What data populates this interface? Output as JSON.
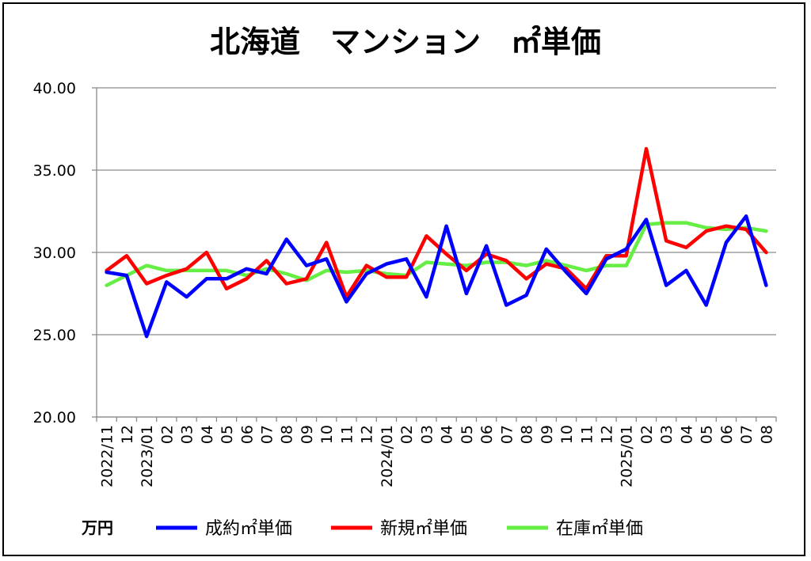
{
  "chart_data": {
    "type": "line",
    "title": "北海道　マンション　㎡単価",
    "unit_label": "万円",
    "ylim": [
      20,
      40
    ],
    "y_ticks": [
      "20.00",
      "25.00",
      "30.00",
      "35.00",
      "40.00"
    ],
    "grid": true,
    "legend_position": "bottom",
    "categories": [
      "2022/11",
      "12",
      "2023/01",
      "02",
      "03",
      "04",
      "05",
      "06",
      "07",
      "08",
      "09",
      "10",
      "11",
      "12",
      "2024/01",
      "02",
      "03",
      "04",
      "05",
      "06",
      "07",
      "08",
      "09",
      "10",
      "11",
      "12",
      "2025/01",
      "02",
      "03",
      "04",
      "05",
      "06",
      "07",
      "08"
    ],
    "series": [
      {
        "name": "成約㎡単価",
        "color": "#0000FF",
        "values": [
          28.8,
          28.6,
          24.9,
          28.2,
          27.3,
          28.4,
          28.4,
          29.0,
          28.7,
          30.8,
          29.2,
          29.6,
          27.0,
          28.7,
          29.3,
          29.6,
          27.3,
          31.6,
          27.5,
          30.4,
          26.8,
          27.4,
          30.2,
          28.8,
          27.5,
          29.6,
          30.2,
          32.0,
          28.0,
          28.9,
          26.8,
          30.6,
          32.2,
          28.0
        ]
      },
      {
        "name": "新規㎡単価",
        "color": "#FF0000",
        "values": [
          28.9,
          29.8,
          28.1,
          28.6,
          29.0,
          30.0,
          27.8,
          28.4,
          29.5,
          28.1,
          28.4,
          30.6,
          27.3,
          29.2,
          28.5,
          28.5,
          31.0,
          29.9,
          28.9,
          29.9,
          29.5,
          28.4,
          29.3,
          29.0,
          27.8,
          29.8,
          29.8,
          36.3,
          30.7,
          30.3,
          31.3,
          31.6,
          31.4,
          30.0
        ]
      },
      {
        "name": "在庫㎡単価",
        "color": "#66EE44",
        "values": [
          28.0,
          28.6,
          29.2,
          28.9,
          28.9,
          28.9,
          28.9,
          28.6,
          29.0,
          28.7,
          28.3,
          28.9,
          28.8,
          28.9,
          28.7,
          28.6,
          29.4,
          29.3,
          29.2,
          29.4,
          29.4,
          29.2,
          29.5,
          29.2,
          28.9,
          29.2,
          29.2,
          31.7,
          31.8,
          31.8,
          31.5,
          31.4,
          31.5,
          31.3
        ]
      }
    ]
  }
}
